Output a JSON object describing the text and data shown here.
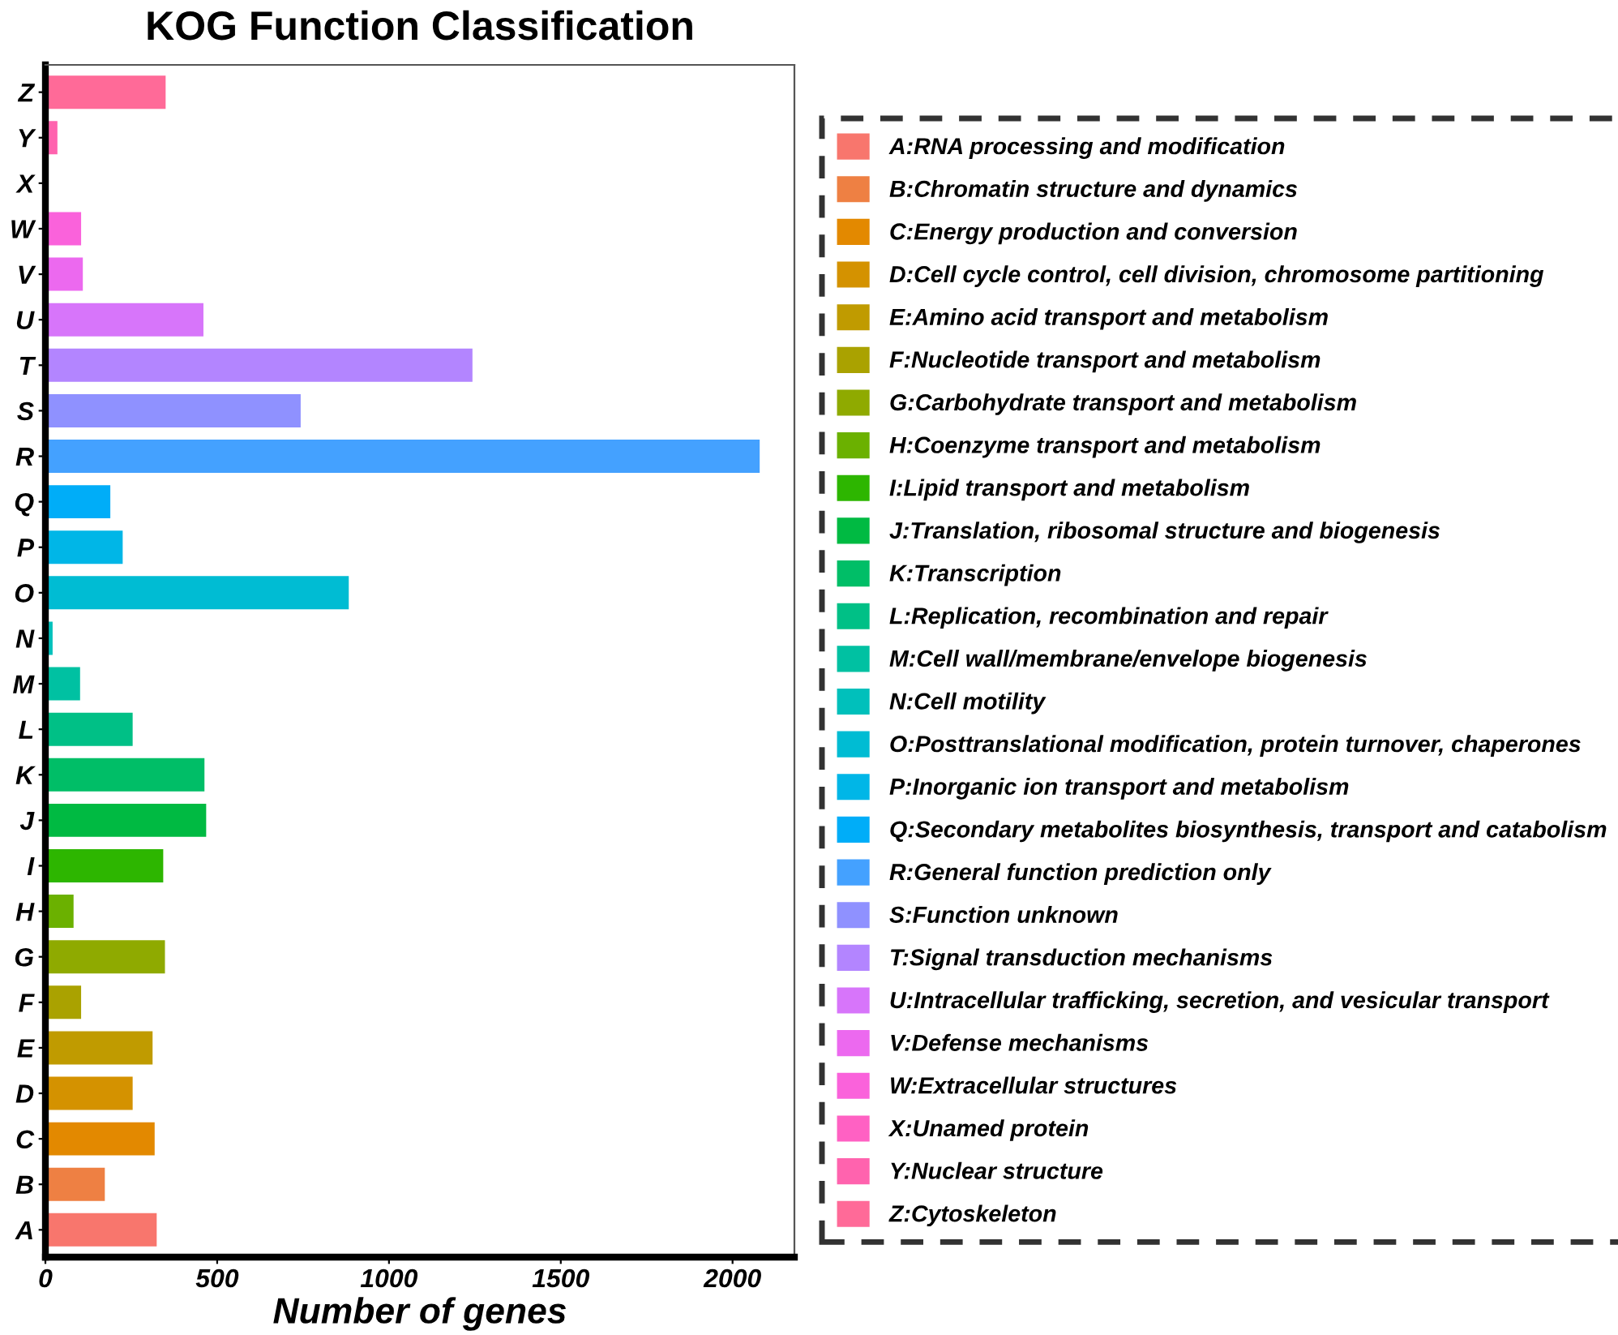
{
  "chart_data": {
    "type": "bar",
    "orientation": "horizontal",
    "title": "KOG Function Classification",
    "xlabel": "Number of genes",
    "categories": [
      "Z",
      "Y",
      "X",
      "W",
      "V",
      "U",
      "T",
      "S",
      "R",
      "Q",
      "P",
      "O",
      "N",
      "M",
      "L",
      "K",
      "J",
      "I",
      "H",
      "G",
      "F",
      "E",
      "D",
      "C",
      "B",
      "A"
    ],
    "series": [
      {
        "name": "A:RNA processing and modification",
        "color": "#F8766D",
        "values": [
          null,
          null,
          null,
          null,
          null,
          null,
          null,
          null,
          null,
          null,
          null,
          null,
          null,
          null,
          null,
          null,
          null,
          null,
          null,
          null,
          null,
          null,
          null,
          null,
          null,
          322
        ]
      },
      {
        "name": "B:Chromatin structure and dynamics",
        "color": "#EE8043",
        "values": [
          null,
          null,
          null,
          null,
          null,
          null,
          null,
          null,
          null,
          null,
          null,
          null,
          null,
          null,
          null,
          null,
          null,
          null,
          null,
          null,
          null,
          null,
          null,
          null,
          171,
          null
        ]
      },
      {
        "name": "C:Energy production and conversion",
        "color": "#E38900",
        "values": [
          null,
          null,
          null,
          null,
          null,
          null,
          null,
          null,
          null,
          null,
          null,
          null,
          null,
          null,
          null,
          null,
          null,
          null,
          null,
          null,
          null,
          null,
          null,
          316,
          null,
          null
        ]
      },
      {
        "name": "D:Cell cycle control, cell division, chromosome partitioning",
        "color": "#D49200",
        "values": [
          null,
          null,
          null,
          null,
          null,
          null,
          null,
          null,
          null,
          null,
          null,
          null,
          null,
          null,
          null,
          null,
          null,
          null,
          null,
          null,
          null,
          null,
          252,
          null,
          null,
          null
        ]
      },
      {
        "name": "E:Amino acid transport and metabolism",
        "color": "#C09B00",
        "values": [
          null,
          null,
          null,
          null,
          null,
          null,
          null,
          null,
          null,
          null,
          null,
          null,
          null,
          null,
          null,
          null,
          null,
          null,
          null,
          null,
          null,
          310,
          null,
          null,
          null,
          null
        ]
      },
      {
        "name": "F:Nucleotide transport and metabolism",
        "color": "#AAA200",
        "values": [
          null,
          null,
          null,
          null,
          null,
          null,
          null,
          null,
          null,
          null,
          null,
          null,
          null,
          null,
          null,
          null,
          null,
          null,
          null,
          null,
          102,
          null,
          null,
          null,
          null,
          null
        ]
      },
      {
        "name": "G:Carbohydrate transport and metabolism",
        "color": "#8FAA00",
        "values": [
          null,
          null,
          null,
          null,
          null,
          null,
          null,
          null,
          null,
          null,
          null,
          null,
          null,
          null,
          null,
          null,
          null,
          null,
          null,
          346,
          null,
          null,
          null,
          null,
          null,
          null
        ]
      },
      {
        "name": "H:Coenzyme transport and metabolism",
        "color": "#6BB100",
        "values": [
          null,
          null,
          null,
          null,
          null,
          null,
          null,
          null,
          null,
          null,
          null,
          null,
          null,
          null,
          null,
          null,
          null,
          null,
          80,
          null,
          null,
          null,
          null,
          null,
          null,
          null
        ]
      },
      {
        "name": "I:Lipid transport and metabolism",
        "color": "#2DB600",
        "values": [
          null,
          null,
          null,
          null,
          null,
          null,
          null,
          null,
          null,
          null,
          null,
          null,
          null,
          null,
          null,
          null,
          null,
          341,
          null,
          null,
          null,
          null,
          null,
          null,
          null,
          null
        ]
      },
      {
        "name": "J:Translation, ribosomal structure and biogenesis",
        "color": "#00BA42",
        "values": [
          null,
          null,
          null,
          null,
          null,
          null,
          null,
          null,
          null,
          null,
          null,
          null,
          null,
          null,
          null,
          null,
          466,
          null,
          null,
          null,
          null,
          null,
          null,
          null,
          null,
          null
        ]
      },
      {
        "name": "K:Transcription",
        "color": "#00BE67",
        "values": [
          null,
          null,
          null,
          null,
          null,
          null,
          null,
          null,
          null,
          null,
          null,
          null,
          null,
          null,
          null,
          461,
          null,
          null,
          null,
          null,
          null,
          null,
          null,
          null,
          null,
          null
        ]
      },
      {
        "name": "L:Replication, recombination and repair",
        "color": "#00C086",
        "values": [
          null,
          null,
          null,
          null,
          null,
          null,
          null,
          null,
          null,
          null,
          null,
          null,
          null,
          null,
          252,
          null,
          null,
          null,
          null,
          null,
          null,
          null,
          null,
          null,
          null,
          null
        ]
      },
      {
        "name": "M:Cell wall/membrane/envelope biogenesis",
        "color": "#00C1A2",
        "values": [
          null,
          null,
          null,
          null,
          null,
          null,
          null,
          null,
          null,
          null,
          null,
          null,
          null,
          99,
          null,
          null,
          null,
          null,
          null,
          null,
          null,
          null,
          null,
          null,
          null,
          null
        ]
      },
      {
        "name": "N:Cell motility",
        "color": "#00C0BB",
        "values": [
          null,
          null,
          null,
          null,
          null,
          null,
          null,
          null,
          null,
          null,
          null,
          null,
          19,
          null,
          null,
          null,
          null,
          null,
          null,
          null,
          null,
          null,
          null,
          null,
          null,
          null
        ]
      },
      {
        "name": "O:Posttranslational modification, protein turnover, chaperones",
        "color": "#00BCD3",
        "values": [
          null,
          null,
          null,
          null,
          null,
          null,
          null,
          null,
          null,
          null,
          null,
          881,
          null,
          null,
          null,
          null,
          null,
          null,
          null,
          null,
          null,
          null,
          null,
          null,
          null,
          null
        ]
      },
      {
        "name": "P:Inorganic ion transport and metabolism",
        "color": "#00B6E7",
        "values": [
          null,
          null,
          null,
          null,
          null,
          null,
          null,
          null,
          null,
          null,
          223,
          null,
          null,
          null,
          null,
          null,
          null,
          null,
          null,
          null,
          null,
          null,
          null,
          null,
          null,
          null
        ]
      },
      {
        "name": "Q:Secondary metabolites biosynthesis, transport and catabolism",
        "color": "#00ADF8",
        "values": [
          null,
          null,
          null,
          null,
          null,
          null,
          null,
          null,
          null,
          187,
          null,
          null,
          null,
          null,
          null,
          null,
          null,
          null,
          null,
          null,
          null,
          null,
          null,
          null,
          null,
          null
        ]
      },
      {
        "name": "R:General function prediction only",
        "color": "#44A1FF",
        "values": [
          null,
          null,
          null,
          null,
          null,
          null,
          null,
          null,
          2077,
          null,
          null,
          null,
          null,
          null,
          null,
          null,
          null,
          null,
          null,
          null,
          null,
          null,
          null,
          null,
          null,
          null
        ]
      },
      {
        "name": "S:Function unknown",
        "color": "#8F91FF",
        "values": [
          null,
          null,
          null,
          null,
          null,
          null,
          null,
          741,
          null,
          null,
          null,
          null,
          null,
          null,
          null,
          null,
          null,
          null,
          null,
          null,
          null,
          null,
          null,
          null,
          null,
          null
        ]
      },
      {
        "name": "T:Signal transduction mechanisms",
        "color": "#B385FF",
        "values": [
          null,
          null,
          null,
          null,
          null,
          null,
          1241,
          null,
          null,
          null,
          null,
          null,
          null,
          null,
          null,
          null,
          null,
          null,
          null,
          null,
          null,
          null,
          null,
          null,
          null,
          null
        ]
      },
      {
        "name": "U:Intracellular trafficking, secretion, and vesicular transport",
        "color": "#D775FA",
        "values": [
          null,
          null,
          null,
          null,
          null,
          458,
          null,
          null,
          null,
          null,
          null,
          null,
          null,
          null,
          null,
          null,
          null,
          null,
          null,
          null,
          null,
          null,
          null,
          null,
          null,
          null
        ]
      },
      {
        "name": "V:Defense mechanisms",
        "color": "#EC69EF",
        "values": [
          null,
          null,
          null,
          null,
          107,
          null,
          null,
          null,
          null,
          null,
          null,
          null,
          null,
          null,
          null,
          null,
          null,
          null,
          null,
          null,
          null,
          null,
          null,
          null,
          null,
          null
        ]
      },
      {
        "name": "W:Extracellular structures",
        "color": "#FA62DB",
        "values": [
          null,
          null,
          null,
          102,
          null,
          null,
          null,
          null,
          null,
          null,
          null,
          null,
          null,
          null,
          null,
          null,
          null,
          null,
          null,
          null,
          null,
          null,
          null,
          null,
          null,
          null
        ]
      },
      {
        "name": "X:Unamed protein",
        "color": "#FF61C3",
        "values": [
          null,
          null,
          0,
          null,
          null,
          null,
          null,
          null,
          null,
          null,
          null,
          null,
          null,
          null,
          null,
          null,
          null,
          null,
          null,
          null,
          null,
          null,
          null,
          null,
          null,
          null
        ]
      },
      {
        "name": "Y:Nuclear structure",
        "color": "#FF63AE",
        "values": [
          null,
          33,
          null,
          null,
          null,
          null,
          null,
          null,
          null,
          null,
          null,
          null,
          null,
          null,
          null,
          null,
          null,
          null,
          null,
          null,
          null,
          null,
          null,
          null,
          null,
          null
        ]
      },
      {
        "name": "Z:Cytoskeleton",
        "color": "#FF6A98",
        "values": [
          348,
          null,
          null,
          null,
          null,
          null,
          null,
          null,
          null,
          null,
          null,
          null,
          null,
          null,
          null,
          null,
          null,
          null,
          null,
          null,
          null,
          null,
          null,
          null,
          null,
          null
        ]
      }
    ],
    "xlim": [
      0,
      2180
    ],
    "xticks": [
      0,
      500,
      1000,
      1500,
      2000
    ],
    "grid": false,
    "legend": "right"
  }
}
